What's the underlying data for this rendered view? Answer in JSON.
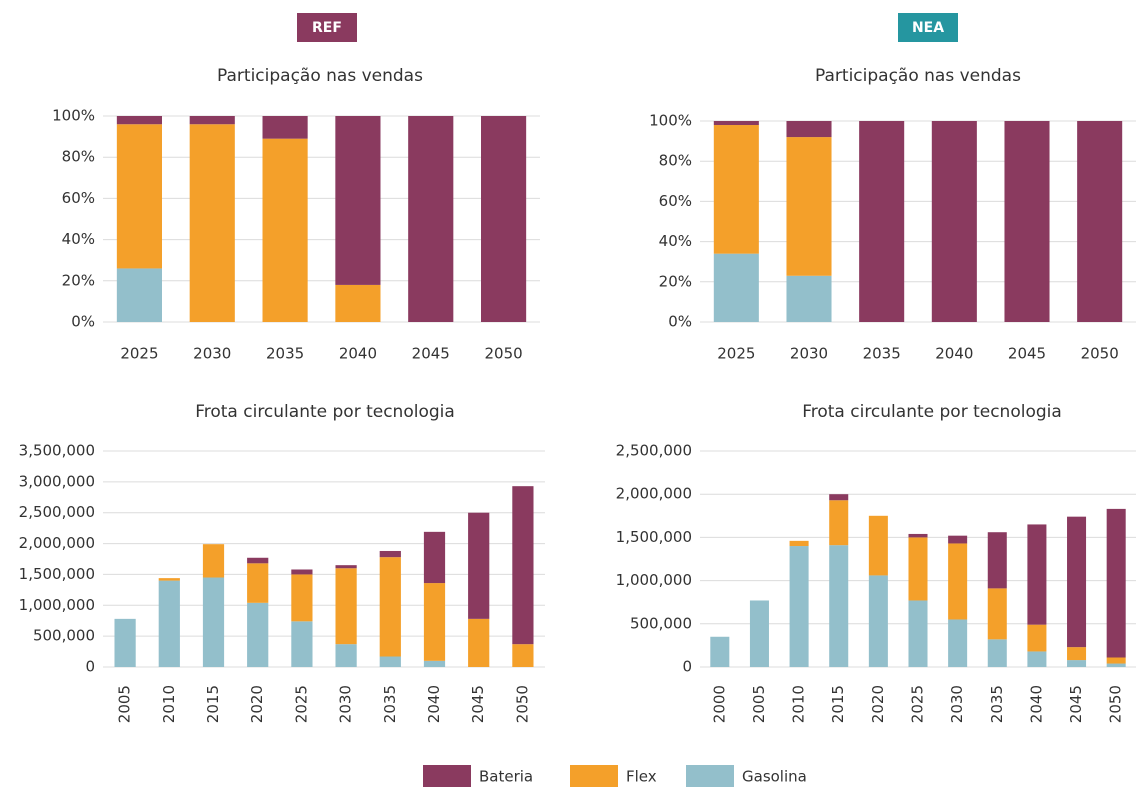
{
  "panels": [
    "REF",
    "NEA"
  ],
  "chart_data": [
    {
      "type": "bar",
      "stacked": true,
      "title": "Participação nas vendas",
      "categories": [
        "2025",
        "2030",
        "2035",
        "2040",
        "2045",
        "2050"
      ],
      "series": [
        {
          "name": "Bateria",
          "color": "#8a3a5f",
          "values": [
            4,
            4,
            11,
            82,
            100,
            100
          ]
        },
        {
          "name": "Flex",
          "color": "#f4a02a",
          "values": [
            70,
            96,
            89,
            18,
            0,
            0
          ]
        },
        {
          "name": "Gasolina",
          "color": "#93bfcb",
          "values": [
            26,
            0,
            0,
            0,
            0,
            0
          ]
        }
      ],
      "ylim": [
        0,
        100
      ],
      "yticks": [
        {
          "value": 0,
          "label": "0%"
        },
        {
          "value": 20,
          "label": "20%"
        },
        {
          "value": 40,
          "label": "40%"
        },
        {
          "value": 60,
          "label": "60%"
        },
        {
          "value": 80,
          "label": "80%"
        },
        {
          "value": 100,
          "label": "100%"
        }
      ],
      "grid": true
    },
    {
      "type": "bar",
      "stacked": true,
      "title": "Participação nas vendas",
      "categories": [
        "2025",
        "2030",
        "2035",
        "2040",
        "2045",
        "2050"
      ],
      "series": [
        {
          "name": "Bateria",
          "color": "#8a3a5f",
          "values": [
            2,
            8,
            100,
            100,
            100,
            100
          ]
        },
        {
          "name": "Flex",
          "color": "#f4a02a",
          "values": [
            64,
            69,
            0,
            0,
            0,
            0
          ]
        },
        {
          "name": "Gasolina",
          "color": "#93bfcb",
          "values": [
            34,
            23,
            0,
            0,
            0,
            0
          ]
        }
      ],
      "ylim": [
        0,
        100
      ],
      "yticks": [
        {
          "value": 0,
          "label": "0%"
        },
        {
          "value": 20,
          "label": "20%"
        },
        {
          "value": 40,
          "label": "40%"
        },
        {
          "value": 60,
          "label": "60%"
        },
        {
          "value": 80,
          "label": "80%"
        },
        {
          "value": 100,
          "label": "100%"
        }
      ],
      "grid": true
    },
    {
      "type": "bar",
      "stacked": true,
      "title": "Frota circulante por tecnologia",
      "categories": [
        "2005",
        "2010",
        "2015",
        "2020",
        "2025",
        "2030",
        "2035",
        "2040",
        "2045",
        "2050"
      ],
      "series": [
        {
          "name": "Bateria",
          "color": "#8a3a5f",
          "values": [
            0,
            0,
            0,
            90000,
            80000,
            50000,
            100000,
            830000,
            1720000,
            2560000
          ]
        },
        {
          "name": "Flex",
          "color": "#f4a02a",
          "values": [
            0,
            40000,
            540000,
            640000,
            760000,
            1230000,
            1610000,
            1260000,
            780000,
            370000
          ]
        },
        {
          "name": "Gasolina",
          "color": "#93bfcb",
          "values": [
            780000,
            1400000,
            1450000,
            1040000,
            740000,
            370000,
            170000,
            100000,
            0,
            0
          ]
        }
      ],
      "ylim": [
        0,
        3500000
      ],
      "yticks": [
        0,
        {
          "value": 500000,
          "label": "500,000"
        },
        {
          "value": 1000000,
          "label": "1,000,000"
        },
        {
          "value": 1500000,
          "label": "1,500,000"
        },
        {
          "value": 2000000,
          "label": "2,000,000"
        },
        {
          "value": 2500000,
          "label": "2,500,000"
        },
        {
          "value": 3000000,
          "label": "3,000,000"
        },
        {
          "value": 3500000,
          "label": "3,500,000"
        }
      ],
      "grid": true,
      "rotate_labels": true
    },
    {
      "type": "bar",
      "stacked": true,
      "title": "Frota circulante por tecnologia",
      "categories": [
        "2000",
        "2005",
        "2010",
        "2015",
        "2020",
        "2025",
        "2030",
        "2035",
        "2040",
        "2045",
        "2050"
      ],
      "series": [
        {
          "name": "Bateria",
          "color": "#8a3a5f",
          "values": [
            0,
            0,
            0,
            70000,
            0,
            40000,
            90000,
            650000,
            1160000,
            1510000,
            1720000
          ]
        },
        {
          "name": "Flex",
          "color": "#f4a02a",
          "values": [
            0,
            0,
            60000,
            520000,
            690000,
            730000,
            880000,
            590000,
            310000,
            150000,
            70000
          ]
        },
        {
          "name": "Gasolina",
          "color": "#93bfcb",
          "values": [
            350000,
            770000,
            1400000,
            1410000,
            1060000,
            770000,
            550000,
            320000,
            180000,
            80000,
            40000
          ]
        }
      ],
      "ylim": [
        0,
        2500000
      ],
      "yticks": [
        0,
        {
          "value": 500000,
          "label": "500,000"
        },
        {
          "value": 1000000,
          "label": "1,000,000"
        },
        {
          "value": 1500000,
          "label": "1,500,000"
        },
        {
          "value": 2000000,
          "label": "2,000,000"
        },
        {
          "value": 2500000,
          "label": "2,500,000"
        }
      ],
      "grid": true,
      "rotate_labels": true
    }
  ]
}
